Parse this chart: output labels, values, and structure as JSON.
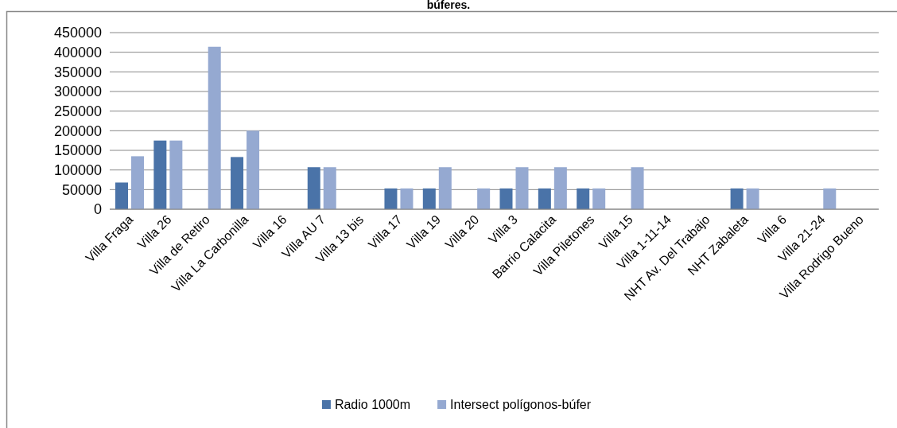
{
  "chart_data": {
    "type": "bar",
    "title": "búferes.",
    "categories": [
      "Villa Fraga",
      "Villa 26",
      "Villa de Retiro",
      "Villa La Carbonilla",
      "Villa 16",
      "Villa AU 7",
      "Villa 13 bis",
      "Villa 17",
      "Villa 19",
      "Villa 20",
      "Villa 3",
      "Barrio Calacita",
      "Villa Piletones",
      "Villa 15",
      "Villa 1-11-14",
      "NHT Av. Del Trabajo",
      "NHT Zabaleta",
      "Villa 6",
      "Villa 21-24",
      "Villa Rodrigo Bueno"
    ],
    "series": [
      {
        "name": "Radio 1000m",
        "color": "#4a73a8",
        "values": [
          68000,
          175000,
          0,
          133000,
          0,
          107000,
          0,
          53000,
          53000,
          0,
          53000,
          53000,
          53000,
          0,
          0,
          0,
          53000,
          0,
          0,
          0
        ]
      },
      {
        "name": "Intersect polígonos-búfer",
        "color": "#95a9d1",
        "values": [
          135000,
          175000,
          414000,
          200000,
          0,
          107000,
          0,
          53000,
          107000,
          53000,
          107000,
          107000,
          53000,
          107000,
          0,
          0,
          53000,
          0,
          53000,
          0
        ]
      }
    ],
    "ylim": [
      0,
      450000
    ],
    "yticks": [
      0,
      50000,
      100000,
      150000,
      200000,
      250000,
      300000,
      350000,
      400000,
      450000
    ],
    "grid": "y",
    "legend": "bottom"
  }
}
